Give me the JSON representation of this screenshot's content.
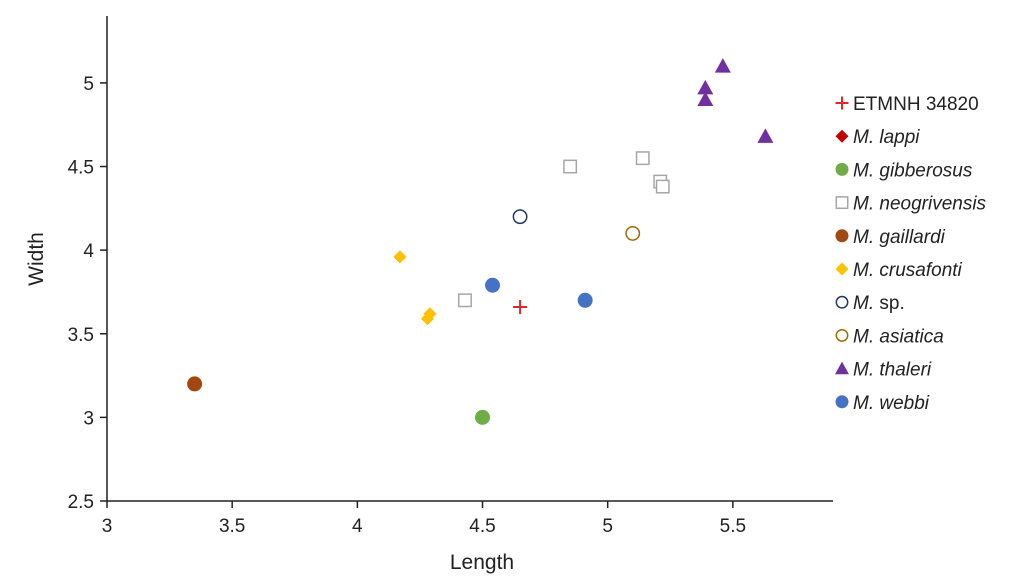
{
  "chart_data": {
    "type": "scatter",
    "xlabel": "Length",
    "ylabel": "Width",
    "xlim": [
      3,
      5.9
    ],
    "ylim": [
      2.5,
      5.4
    ],
    "xticks": [
      "3",
      "3.5",
      "4",
      "4.5",
      "5",
      "5.5"
    ],
    "yticks": [
      "2.5",
      "3",
      "3.5",
      "4",
      "4.5",
      "5"
    ],
    "grid": false,
    "legend_position": "right",
    "series": [
      {
        "name": "ETMNH 34820",
        "label_main": "ETMNH 34820",
        "label_suffix": "",
        "italic": false,
        "marker": "plus",
        "color": "#e0262a",
        "points": [
          [
            4.65,
            3.66
          ]
        ]
      },
      {
        "name": "M. lappi",
        "label_main": "M. lappi",
        "label_suffix": "",
        "italic": true,
        "marker": "diamond",
        "color": "#c00000",
        "points": [
          [
            4.43,
            3.7
          ]
        ]
      },
      {
        "name": "M. gibberosus",
        "label_main": "M. gibberosus",
        "label_suffix": "",
        "italic": true,
        "marker": "circle",
        "color": "#70ad47",
        "points": [
          [
            4.5,
            3.0
          ]
        ]
      },
      {
        "name": "M. neogrivensis",
        "label_main": "M. neogrivensis",
        "label_suffix": "",
        "italic": true,
        "marker": "square-open",
        "color": "#a6a6a6",
        "points": [
          [
            4.43,
            3.7
          ],
          [
            4.85,
            4.5
          ],
          [
            5.14,
            4.55
          ],
          [
            5.21,
            4.41
          ],
          [
            5.22,
            4.38
          ]
        ]
      },
      {
        "name": "M. gaillardi",
        "label_main": "M. gaillardi",
        "label_suffix": "",
        "italic": true,
        "marker": "circle",
        "color": "#a0480f",
        "points": [
          [
            3.35,
            3.2
          ]
        ]
      },
      {
        "name": "M. crusafonti",
        "label_main": "M. crusafonti",
        "label_suffix": "",
        "italic": true,
        "marker": "diamond",
        "color": "#ffc000",
        "points": [
          [
            4.17,
            3.96
          ],
          [
            4.28,
            3.59
          ],
          [
            4.29,
            3.62
          ]
        ]
      },
      {
        "name": "M. sp.",
        "label_main": "M.",
        "label_suffix": " sp.",
        "italic": true,
        "marker": "circle-open",
        "color": "#1f3864",
        "points": [
          [
            4.65,
            4.2
          ]
        ]
      },
      {
        "name": "M. asiatica",
        "label_main": "M. asiatica",
        "label_suffix": "",
        "italic": true,
        "marker": "circle-open",
        "color": "#9c6a00",
        "points": [
          [
            5.1,
            4.1
          ]
        ]
      },
      {
        "name": "M. thaleri",
        "label_main": "M. thaleri",
        "label_suffix": "",
        "italic": true,
        "marker": "triangle",
        "color": "#7030a0",
        "points": [
          [
            5.46,
            5.1
          ],
          [
            5.39,
            4.97
          ],
          [
            5.39,
            4.9
          ],
          [
            5.63,
            4.68
          ]
        ]
      },
      {
        "name": "M. webbi",
        "label_main": "M. webbi",
        "label_suffix": "",
        "italic": true,
        "marker": "circle",
        "color": "#4472c4",
        "points": [
          [
            4.54,
            3.79
          ],
          [
            4.91,
            3.7
          ]
        ]
      }
    ]
  }
}
